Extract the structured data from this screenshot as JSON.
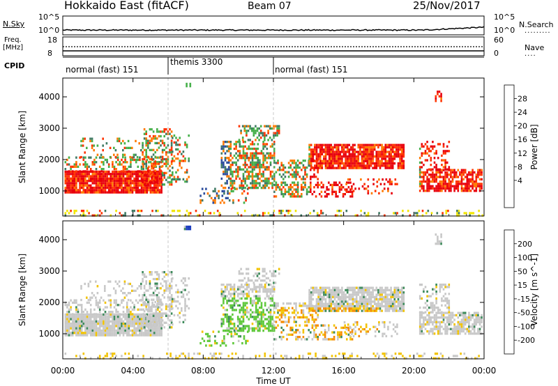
{
  "header": {
    "title": "Hokkaido East (fitACF)",
    "beam": "Beam 07",
    "date": "25/Nov/2017"
  },
  "strip": {
    "nsky_label": "N.Sky",
    "nsky_ticks": [
      "10^5",
      "10^0"
    ],
    "nsearch_label": "N.Search",
    "nsearch_ticks": [
      "10^5",
      "10^0"
    ],
    "freq_label_1": "Freq.",
    "freq_label_2": "[MHz]",
    "freq_ticks": [
      "18",
      "8"
    ],
    "nave_label": "Nave",
    "nave_ticks": [
      "60",
      "0"
    ],
    "cpid_label": "CPID"
  },
  "cpid_segments": [
    {
      "label": "normal (fast) 151",
      "start": 0,
      "end": 6
    },
    {
      "label": "themis 3300",
      "start": 6,
      "end": 12
    },
    {
      "label": "normal (fast) 151",
      "start": 12,
      "end": 24
    }
  ],
  "chart_data": [
    {
      "type": "heatmap",
      "title": "Power",
      "ylabel": "Slant Range [km]",
      "xlabel": "Time UT",
      "x_ticks": [
        "00:00",
        "04:00",
        "08:00",
        "12:00",
        "16:00",
        "20:00",
        "00:00"
      ],
      "x_range_hours": [
        0,
        24
      ],
      "y_ticks": [
        1000,
        2000,
        3000,
        4000
      ],
      "y_range": [
        200,
        4600
      ],
      "colorbar_label": "Power [dB]",
      "colorbar_ticks": [
        "28",
        "24",
        "20",
        "16",
        "12",
        "8",
        "4"
      ],
      "colors": [
        "#0000ff",
        "#2c4c9c",
        "#3f7a64",
        "#46b04a",
        "#f2e600",
        "#ffb300",
        "#ff7a00",
        "#ff3300",
        "#e8000b"
      ]
    },
    {
      "type": "heatmap",
      "title": "Velocity",
      "ylabel": "Slant Range [km]",
      "xlabel": "Time UT",
      "x_ticks": [
        "00:00",
        "04:00",
        "08:00",
        "12:00",
        "16:00",
        "20:00",
        "00:00"
      ],
      "x_range_hours": [
        0,
        24
      ],
      "y_ticks": [
        1000,
        2000,
        3000,
        4000
      ],
      "y_range": [
        200,
        4600
      ],
      "colorbar_label": "Velocity [m s^-1]",
      "colorbar_ticks": [
        "200",
        "100",
        "50",
        "15",
        "-15",
        "-50",
        "-100",
        "-200"
      ],
      "colors": [
        "#1a3cbf",
        "#2e6aa3",
        "#3c8a5a",
        "#5ec83a",
        "#c8c8c8",
        "#f2c300",
        "#f58a00",
        "#f04800",
        "#e00000"
      ]
    }
  ]
}
